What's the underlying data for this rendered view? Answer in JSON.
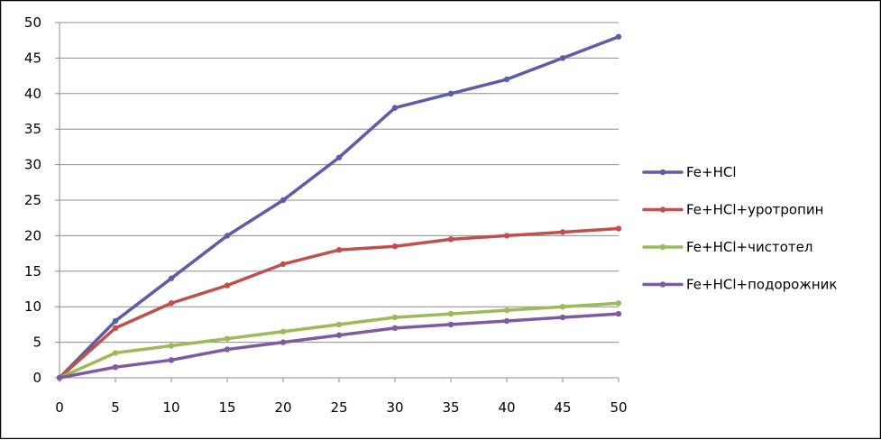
{
  "chart_data": {
    "type": "line",
    "title": "",
    "xlabel": "",
    "ylabel": "",
    "x": [
      0,
      5,
      10,
      15,
      20,
      25,
      30,
      35,
      40,
      45,
      50
    ],
    "xlim": [
      0,
      50
    ],
    "ylim": [
      0,
      50
    ],
    "x_ticks": [
      "0",
      "5",
      "10",
      "15",
      "20",
      "25",
      "30",
      "35",
      "40",
      "45",
      "50"
    ],
    "y_ticks": [
      "0",
      "5",
      "10",
      "15",
      "20",
      "25",
      "30",
      "35",
      "40",
      "45",
      "50"
    ],
    "grid": "horizontal major",
    "legend_position": "right",
    "series": [
      {
        "name": "Fe+HCl",
        "color": "#5b5ea6",
        "values": [
          0,
          8,
          14,
          20,
          25,
          31,
          38,
          40,
          42,
          45,
          48
        ]
      },
      {
        "name": "Fe+HCl+уротропин",
        "color": "#c0504d",
        "values": [
          0,
          7,
          10.5,
          13,
          16,
          18,
          18.5,
          19.5,
          20,
          20.5,
          21
        ]
      },
      {
        "name": "Fe+HCl+чистотел",
        "color": "#9bbb59",
        "values": [
          0,
          3.5,
          4.5,
          5.5,
          6.5,
          7.5,
          8.5,
          9,
          9.5,
          10,
          10.5
        ]
      },
      {
        "name": "Fe+HCl+подорожник",
        "color": "#7e5aa2",
        "values": [
          0,
          1.5,
          2.5,
          4,
          5,
          6,
          7,
          7.5,
          8,
          8.5,
          9
        ]
      }
    ]
  }
}
